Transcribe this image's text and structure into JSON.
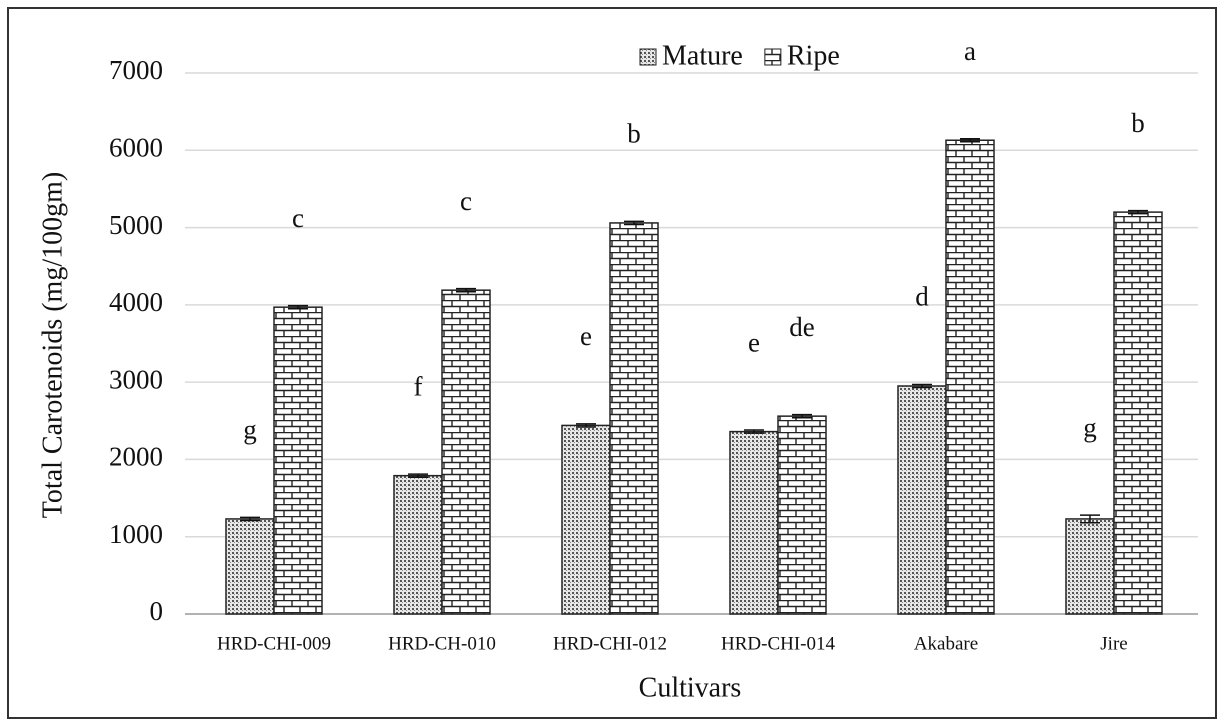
{
  "chart_data": {
    "type": "bar",
    "x_label": "Cultivars",
    "y_label": "Total Carotenoids (mg/100gm)",
    "categories": [
      "HRD-CHI-009",
      "HRD-CH-010",
      "HRD-CHI-012",
      "HRD-CHI-014",
      "Akabare",
      "Jire"
    ],
    "series": [
      {
        "name": "Mature",
        "pattern": "dots",
        "values": [
          1230,
          1790,
          2440,
          2360,
          2950,
          1230
        ],
        "errors": [
          20,
          20,
          20,
          20,
          20,
          50
        ],
        "letters": [
          "g",
          "f",
          "e",
          "e",
          "d",
          "g"
        ]
      },
      {
        "name": "Ripe",
        "pattern": "bricks",
        "values": [
          3970,
          4190,
          5060,
          2560,
          6130,
          5200
        ],
        "errors": [
          20,
          20,
          20,
          20,
          20,
          20
        ],
        "letters": [
          "c",
          "c",
          "b",
          "de",
          "a",
          "b"
        ]
      }
    ],
    "ylim": [
      0,
      7000
    ],
    "yticks": [
      0,
      1000,
      2000,
      3000,
      4000,
      5000,
      6000,
      7000
    ],
    "grid": true,
    "legend": "top"
  }
}
